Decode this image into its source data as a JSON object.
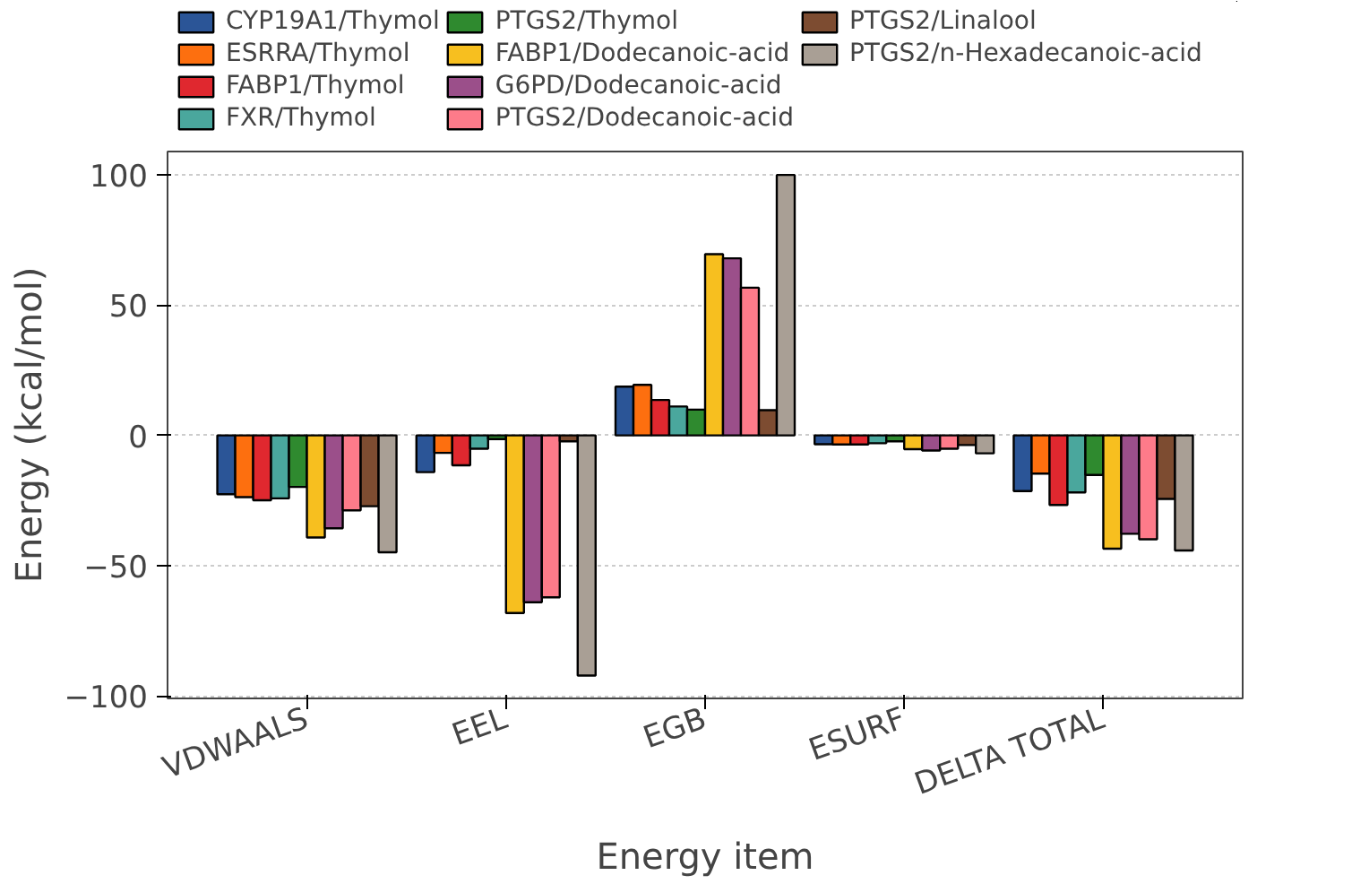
{
  "chart_data": {
    "type": "bar",
    "xlabel": "Energy item",
    "ylabel": "Energy (kcal/mol)",
    "categories": [
      "VDWAALS",
      "EEL",
      "EGB",
      "ESURF",
      "DELTA TOTAL"
    ],
    "series": [
      {
        "name": "CYP19A1/Thymol",
        "color": "#2b5597",
        "values": [
          -22.6,
          -14.1,
          18.7,
          -3.4,
          -21.4
        ]
      },
      {
        "name": "ESRRA/Thymol",
        "color": "#fd6f0f",
        "values": [
          -23.7,
          -6.7,
          19.4,
          -3.5,
          -14.7
        ]
      },
      {
        "name": "FABP1/Thymol",
        "color": "#e0282f",
        "values": [
          -24.9,
          -11.5,
          13.6,
          -3.5,
          -26.7
        ]
      },
      {
        "name": "FXR/Thymol",
        "color": "#4aa79d",
        "values": [
          -24.2,
          -5.1,
          11.1,
          -3.0,
          -21.9
        ]
      },
      {
        "name": "PTGS2/Thymol",
        "color": "#2f8a2f",
        "values": [
          -19.8,
          -1.4,
          9.9,
          -2.3,
          -15.2
        ]
      },
      {
        "name": "FABP1/Dodecanoic-acid",
        "color": "#f7bf1f",
        "values": [
          -39.2,
          -68.2,
          69.6,
          -5.3,
          -43.5
        ]
      },
      {
        "name": "G6PD/Dodecanoic-acid",
        "color": "#9b4f8a",
        "values": [
          -35.7,
          -64.1,
          68.0,
          -5.8,
          -37.8
        ]
      },
      {
        "name": "PTGS2/Dodecanoic-acid",
        "color": "#fd7b8a",
        "values": [
          -28.8,
          -62.2,
          56.7,
          -5.1,
          -39.9
        ]
      },
      {
        "name": "PTGS2/Linalool",
        "color": "#7d4c31",
        "values": [
          -27.2,
          -2.3,
          9.7,
          -3.7,
          -24.4
        ]
      },
      {
        "name": "PTGS2/n-Hexadecanoic-acid",
        "color": "#a99f95",
        "values": [
          -44.9,
          -92.2,
          100.0,
          -6.9,
          -44.2
        ]
      }
    ],
    "ylim": [
      -101,
      109
    ],
    "yticks": [
      -100,
      -50,
      0,
      50,
      100
    ],
    "grid": "y",
    "legend": "top"
  }
}
